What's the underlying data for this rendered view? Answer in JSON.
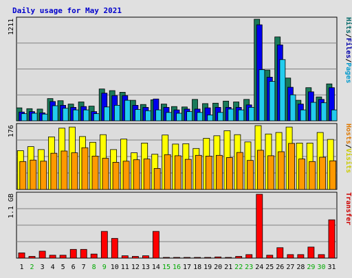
{
  "chart_data": {
    "type": "bar",
    "title": "Daily usage for May 2021",
    "days": [
      "1",
      "2",
      "3",
      "4",
      "5",
      "6",
      "7",
      "8",
      "9",
      "10",
      "11",
      "12",
      "13",
      "14",
      "15",
      "16",
      "17",
      "18",
      "19",
      "20",
      "21",
      "22",
      "23",
      "24",
      "25",
      "26",
      "27",
      "28",
      "29",
      "30",
      "31"
    ],
    "weekend_days": [
      "2",
      "8",
      "9",
      "15",
      "16",
      "22",
      "23",
      "29",
      "30"
    ],
    "panels": [
      {
        "key": "traffic",
        "max_label": "1211",
        "ymax": 1211,
        "legend": [
          {
            "text": "Hits",
            "color": "#006666"
          },
          {
            "text": "/",
            "color": "#000000"
          },
          {
            "text": "Files",
            "color": "#0000aa"
          },
          {
            "text": "/",
            "color": "#000000"
          },
          {
            "text": "Pages",
            "color": "#0099cc"
          }
        ],
        "series": [
          {
            "name": "Hits",
            "color": "#1a7a5a",
            "values": [
              155,
              145,
              140,
              265,
              240,
              200,
              225,
              175,
              380,
              360,
              340,
              245,
              195,
              250,
              200,
              170,
              165,
              255,
              205,
              210,
              235,
              225,
              255,
              1211,
              605,
              1000,
              510,
              245,
              395,
              285,
              440
            ]
          },
          {
            "name": "Files",
            "color": "#0000ee",
            "values": [
              105,
              110,
              95,
              230,
              185,
              160,
              170,
              110,
              330,
              300,
              300,
              185,
              160,
              260,
              160,
              130,
              140,
              140,
              155,
              160,
              160,
              160,
              190,
              1145,
              520,
              905,
              400,
              200,
              345,
              255,
              395
            ]
          },
          {
            "name": "Pages",
            "color": "#22ccee",
            "values": [
              85,
              90,
              80,
              180,
              150,
              130,
              130,
              85,
              165,
              185,
              245,
              135,
              120,
              130,
              100,
              90,
              110,
              100,
              70,
              100,
              140,
              130,
              160,
              610,
              470,
              730,
              310,
              130,
              220,
              215,
              130
            ]
          }
        ]
      },
      {
        "key": "visitors",
        "max_label": "176",
        "ymax": 176,
        "legend": [
          {
            "text": "Hosts",
            "color": "#dd7700"
          },
          {
            "text": "/",
            "color": "#000000"
          },
          {
            "text": "Visits",
            "color": "#cccc00"
          }
        ],
        "series": [
          {
            "name": "Visits",
            "color": "#ffff00",
            "values": [
              107,
              118,
              110,
              145,
              169,
              172,
              146,
              130,
              151,
              110,
              139,
              101,
              128,
              97,
              150,
              125,
              126,
              113,
              141,
              148,
              162,
              151,
              131,
              176,
              153,
              157,
              172,
              128,
              128,
              157,
              138
            ]
          },
          {
            "name": "Hosts",
            "color": "#ff9900",
            "values": [
              77,
              81,
              78,
              100,
              106,
              101,
              115,
              92,
              86,
              75,
              78,
              82,
              84,
              58,
              96,
              93,
              83,
              94,
              92,
              94,
              88,
              102,
              80,
              108,
              93,
              104,
              127,
              84,
              77,
              89,
              79
            ]
          }
        ]
      },
      {
        "key": "transfer",
        "max_label": "1.1 GB",
        "ymax": 1.1,
        "legend": [
          {
            "text": "Transfer",
            "color": "#cc0000"
          }
        ],
        "series": [
          {
            "name": "Transfer",
            "color": "#ff0000",
            "values": [
              0.09,
              0.03,
              0.12,
              0.05,
              0.05,
              0.15,
              0.15,
              0.07,
              0.46,
              0.34,
              0.04,
              0.03,
              0.04,
              0.46,
              0.01,
              0.01,
              0.01,
              0.01,
              0.01,
              0.02,
              0.01,
              0.03,
              0.06,
              1.1,
              0.05,
              0.18,
              0.06,
              0.06,
              0.19,
              0.06,
              0.66
            ]
          }
        ]
      }
    ]
  }
}
